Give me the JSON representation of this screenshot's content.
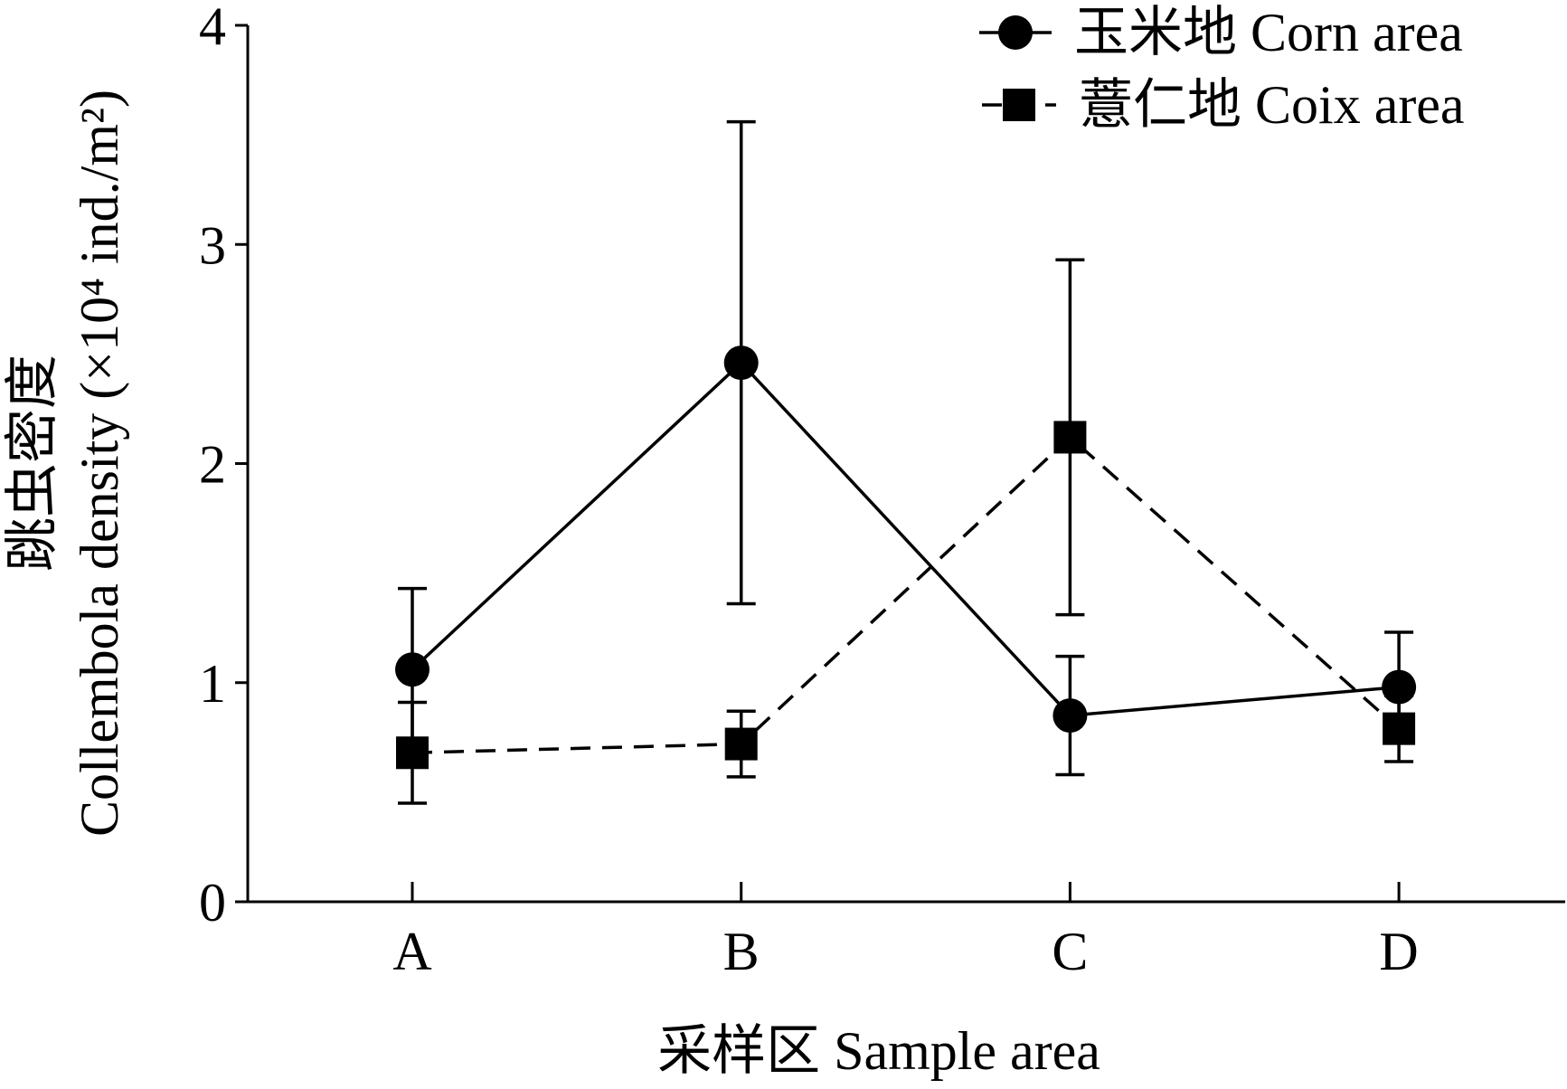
{
  "chart_data": {
    "type": "line",
    "categories": [
      "A",
      "B",
      "C",
      "D"
    ],
    "series": [
      {
        "name": "玉米地 Corn area",
        "values": [
          1.06,
          2.46,
          0.85,
          0.98
        ],
        "errors": [
          0.37,
          1.1,
          0.27,
          0.25
        ],
        "marker": "circle",
        "line_style": "solid",
        "color": "#000000"
      },
      {
        "name": "薏仁地 Coix area",
        "values": [
          0.68,
          0.72,
          2.12,
          0.79
        ],
        "errors": [
          0.23,
          0.15,
          0.81,
          0.15
        ],
        "marker": "square",
        "line_style": "dashed",
        "color": "#000000"
      }
    ],
    "xlabel": "采样区 Sample area",
    "ylabel": [
      "跳虫密度",
      "Collembola density (×10⁴ ind./m²)"
    ],
    "ylim": [
      0,
      4
    ],
    "yticks": [
      0,
      1,
      2,
      3,
      4
    ],
    "grid": false,
    "legend_position": "top-right"
  }
}
